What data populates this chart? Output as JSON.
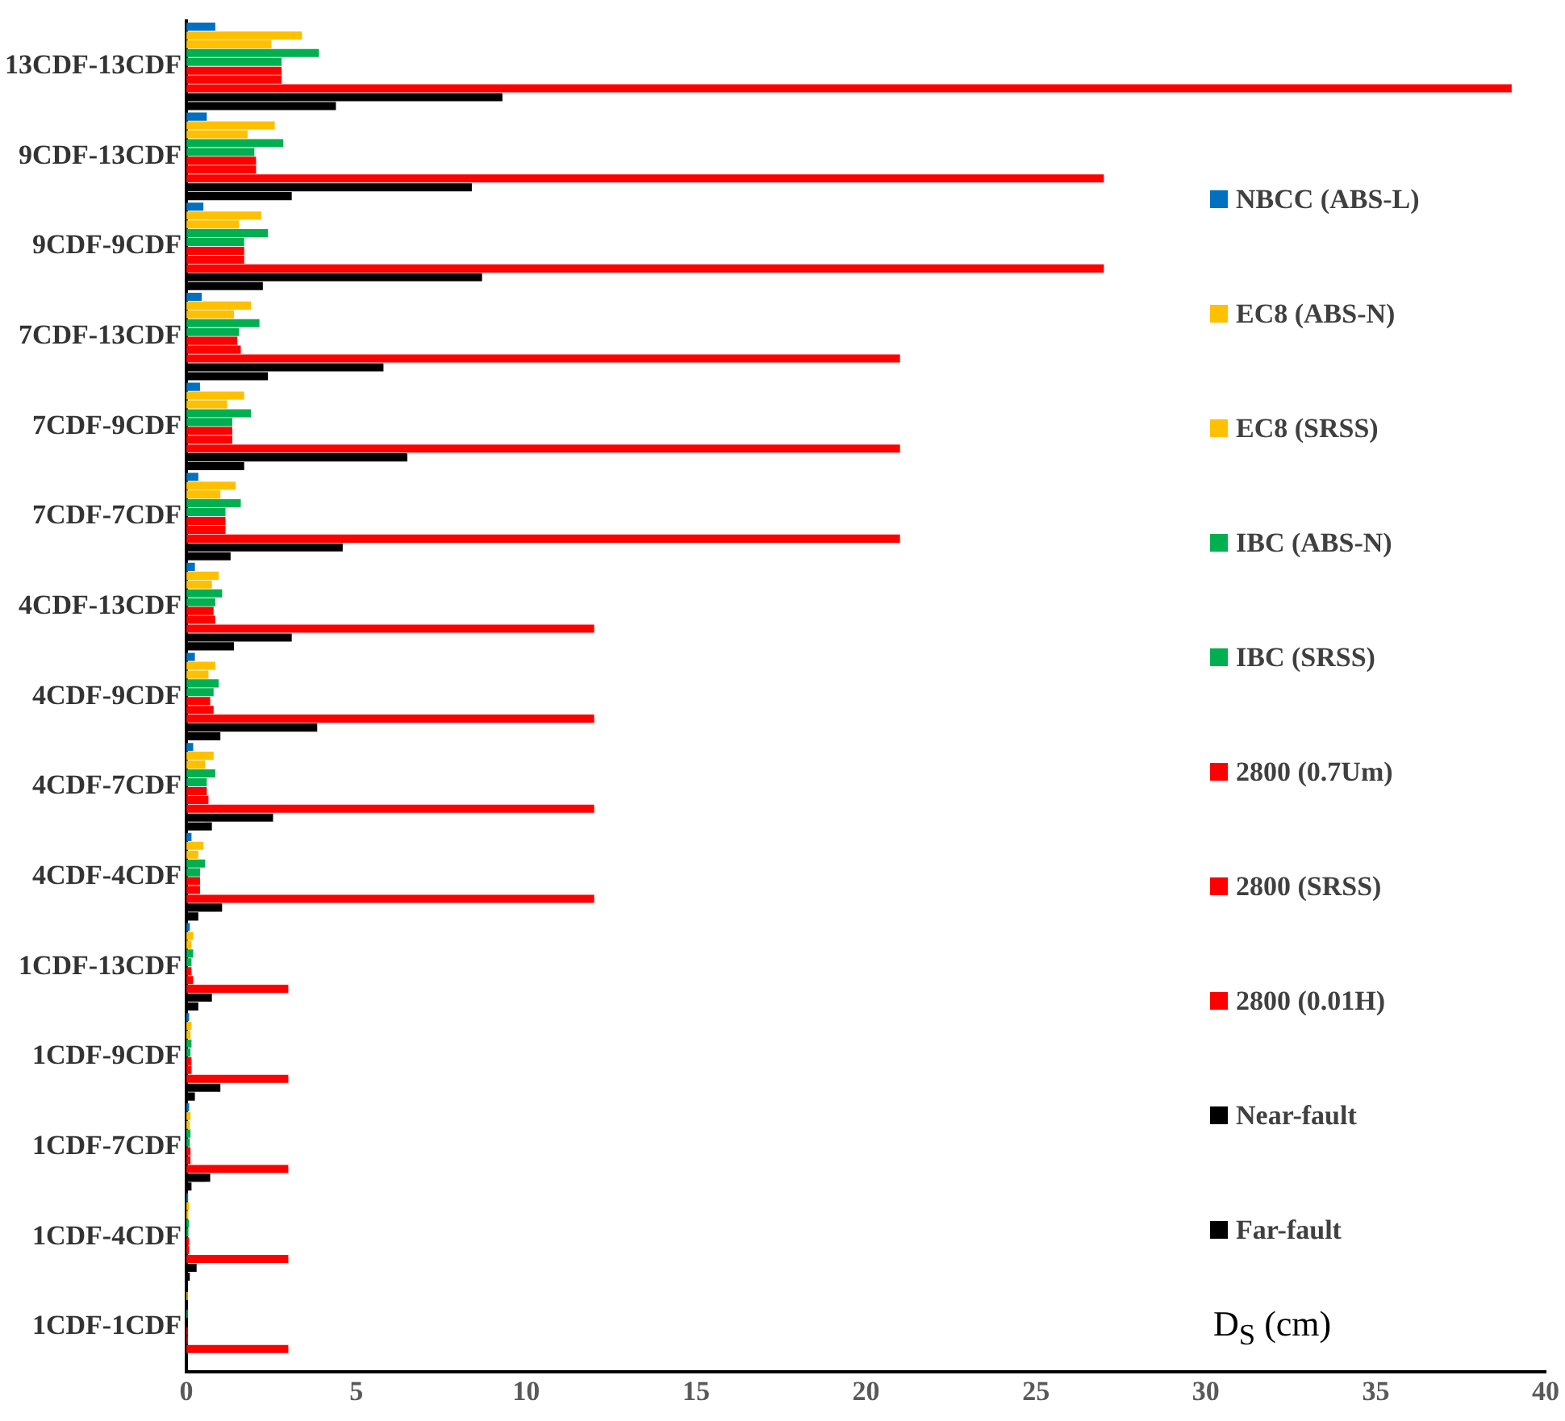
{
  "chart_data": {
    "type": "bar",
    "orientation": "horizontal",
    "xlabel": "D$_{S}$ (cm)",
    "legend": "right",
    "grid": false,
    "categories": [
      "13CDF-13CDF",
      "9CDF-13CDF",
      "9CDF-9CDF",
      "7CDF-13CDF",
      "7CDF-9CDF",
      "7CDF-7CDF",
      "4CDF-13CDF",
      "4CDF-9CDF",
      "4CDF-7CDF",
      "4CDF-4CDF",
      "1CDF-13CDF",
      "1CDF-9CDF",
      "1CDF-7CDF",
      "1CDF-4CDF",
      "1CDF-1CDF"
    ],
    "xlim": [
      0,
      40
    ],
    "xticks": [
      0,
      5,
      10,
      15,
      20,
      25,
      30,
      35,
      40
    ],
    "series": [
      {
        "name": "NBCC (ABS-L)",
        "color": "#0070c0",
        "values": [
          0.85,
          0.6,
          0.5,
          0.45,
          0.4,
          0.35,
          0.25,
          0.25,
          0.2,
          0.15,
          0.1,
          0.08,
          0.08,
          0.05,
          null
        ]
      },
      {
        "name": "EC8 (ABS-N)",
        "color": "#ffc000",
        "values": [
          3.4,
          2.6,
          2.2,
          1.9,
          1.7,
          1.45,
          0.95,
          0.85,
          0.8,
          0.5,
          0.2,
          0.15,
          0.12,
          0.08,
          0.04
        ]
      },
      {
        "name": "EC8 (SRSS)",
        "color": "#ffc000",
        "values": [
          2.5,
          1.8,
          1.55,
          1.4,
          1.2,
          1.0,
          0.75,
          0.65,
          0.55,
          0.35,
          0.15,
          0.12,
          0.1,
          0.06,
          null
        ]
      },
      {
        "name": "IBC (ABS-N)",
        "color": "#00b050",
        "values": [
          3.9,
          2.85,
          2.4,
          2.15,
          1.9,
          1.6,
          1.05,
          0.95,
          0.85,
          0.55,
          0.2,
          0.15,
          0.12,
          0.08,
          0.04
        ]
      },
      {
        "name": "IBC (SRSS)",
        "color": "#00b050",
        "values": [
          2.8,
          2.0,
          1.7,
          1.55,
          1.35,
          1.15,
          0.85,
          0.8,
          0.6,
          0.4,
          0.15,
          0.12,
          0.1,
          0.06,
          null
        ]
      },
      {
        "name": "2800 (0.7Um)",
        "color": "#ff0000",
        "values": [
          2.8,
          2.05,
          1.7,
          1.5,
          1.35,
          1.15,
          0.8,
          0.7,
          0.6,
          0.4,
          0.15,
          0.15,
          0.12,
          0.08,
          0.04
        ]
      },
      {
        "name": "2800 (SRSS)",
        "color": "#ff0000",
        "values": [
          2.8,
          2.05,
          1.7,
          1.6,
          1.35,
          1.15,
          0.85,
          0.8,
          0.65,
          0.4,
          0.2,
          0.15,
          0.12,
          0.08,
          0.04
        ]
      },
      {
        "name": "2800 (0.01H)",
        "color": "#ff0000",
        "values": [
          39,
          27,
          27,
          21,
          21,
          21,
          12,
          12,
          12,
          12,
          3,
          3,
          3,
          3,
          3
        ]
      },
      {
        "name": "Near-fault",
        "color": "#000000",
        "values": [
          9.3,
          8.4,
          8.7,
          5.8,
          6.5,
          4.6,
          3.1,
          3.85,
          2.55,
          1.05,
          0.75,
          1.0,
          0.7,
          0.3,
          null
        ]
      },
      {
        "name": "Far-fault",
        "color": "#000000",
        "values": [
          4.4,
          3.1,
          2.25,
          2.4,
          1.7,
          1.3,
          1.4,
          1.0,
          0.75,
          0.35,
          0.35,
          0.25,
          0.15,
          0.1,
          0.03
        ]
      }
    ]
  }
}
